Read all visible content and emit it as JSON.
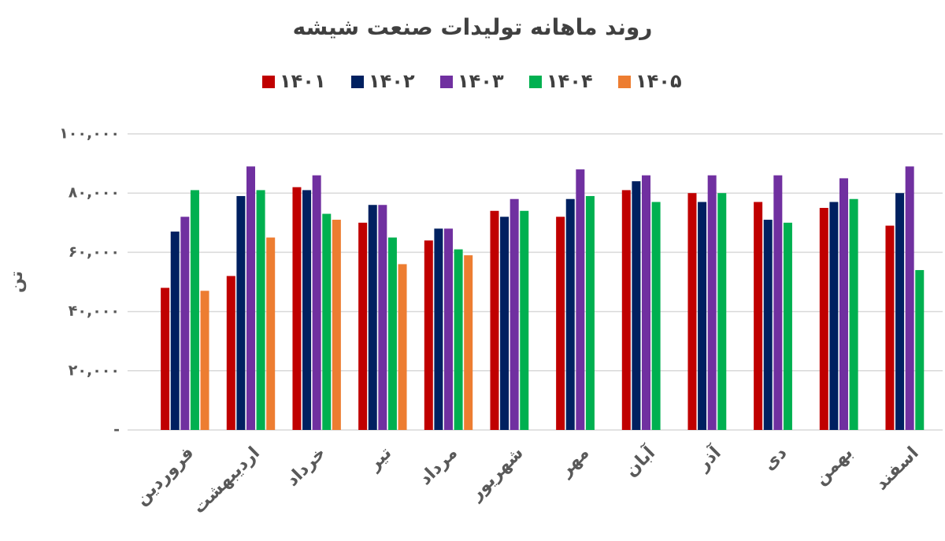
{
  "chart_data": {
    "type": "bar",
    "title": "روند ماهانه تولیدات صنعت شیشه",
    "y_label": "تن",
    "categories": [
      "فروردین",
      "اردیبهشت",
      "خرداد",
      "تیر",
      "مرداد",
      "شهریور",
      "مهر",
      "آبان",
      "آذر",
      "دی",
      "بهمن",
      "اسفند"
    ],
    "series": [
      {
        "name": "۱۴۰۱",
        "color": "#c00000",
        "values": [
          48000,
          52000,
          82000,
          70000,
          64000,
          74000,
          72000,
          81000,
          80000,
          77000,
          75000,
          69000
        ]
      },
      {
        "name": "۱۴۰۲",
        "color": "#002060",
        "values": [
          67000,
          79000,
          81000,
          76000,
          68000,
          72000,
          78000,
          84000,
          77000,
          71000,
          77000,
          80000
        ]
      },
      {
        "name": "۱۴۰۳",
        "color": "#7030a0",
        "values": [
          72000,
          89000,
          86000,
          76000,
          68000,
          78000,
          88000,
          86000,
          86000,
          86000,
          85000,
          89000
        ]
      },
      {
        "name": "۱۴۰۴",
        "color": "#00b050",
        "values": [
          81000,
          81000,
          73000,
          65000,
          61000,
          74000,
          79000,
          77000,
          80000,
          70000,
          78000,
          54000
        ]
      },
      {
        "name": "۱۴۰۵",
        "color": "#ed7d31",
        "values": [
          47000,
          65000,
          71000,
          56000,
          59000,
          null,
          null,
          null,
          null,
          null,
          null,
          null
        ]
      }
    ],
    "ylim": [
      0,
      100000
    ],
    "yticks": [
      {
        "value": 0,
        "label": "-"
      },
      {
        "value": 20000,
        "label": "۲۰,۰۰۰"
      },
      {
        "value": 40000,
        "label": "۴۰,۰۰۰"
      },
      {
        "value": 60000,
        "label": "۶۰,۰۰۰"
      },
      {
        "value": 80000,
        "label": "۸۰,۰۰۰"
      },
      {
        "value": 100000,
        "label": "۱۰۰,۰۰۰"
      }
    ],
    "grid": true,
    "legend": "top"
  }
}
